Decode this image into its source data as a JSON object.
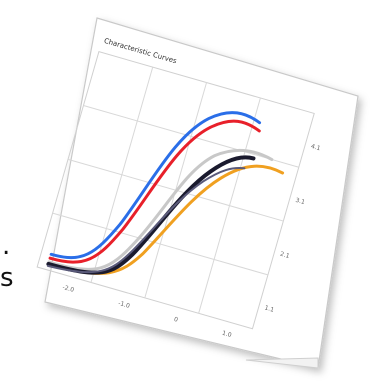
{
  "page": {
    "edge_glyphs": [
      ".",
      "s"
    ]
  },
  "card": {
    "title": "Characteristic Curves",
    "x_ticks": [
      "-2.0",
      "-1.0",
      "0",
      "1.0"
    ],
    "y_ticks": [
      "1.1",
      "2.1",
      "3.1",
      "4.1"
    ]
  },
  "chart_data": {
    "type": "line",
    "title": "Characteristic Curves",
    "xlabel": "",
    "ylabel": "",
    "x_tick_labels": [
      "-2.0",
      "-1.0",
      "0",
      "1.0"
    ],
    "y_tick_labels": [
      "1.1",
      "2.1",
      "3.1",
      "4.1"
    ],
    "grid": true,
    "series_colors": [
      "#2a6ee8",
      "#e8202a",
      "#1a1a2e",
      "#f0a020",
      "#c8c8c8"
    ]
  }
}
